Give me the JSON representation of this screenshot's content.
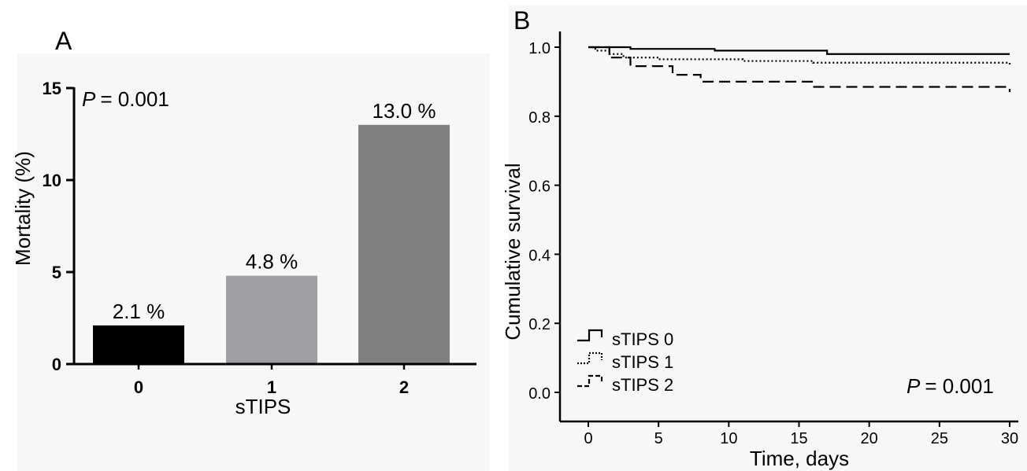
{
  "chart_data": [
    {
      "panel_label": "A",
      "type": "bar",
      "categories": [
        "0",
        "1",
        "2"
      ],
      "values": [
        2.1,
        4.8,
        13.0
      ],
      "value_labels": [
        "2.1 %",
        "4.8 %",
        "13.0 %"
      ],
      "bar_colors": [
        "#000000",
        "#a0a0a4",
        "#808080"
      ],
      "xlabel": "sTIPS",
      "ylabel": "Mortality (%)",
      "ylim": [
        0,
        15
      ],
      "yticks": [
        0,
        5,
        10,
        15
      ],
      "annotation": {
        "p_symbol": "P",
        "p_value": "= 0.001"
      }
    },
    {
      "panel_label": "B",
      "type": "line",
      "xlabel": "Time, days",
      "ylabel": "Cumulative survival",
      "xlim": [
        0,
        30
      ],
      "ylim": [
        0,
        1.0
      ],
      "xticks": [
        0,
        5,
        10,
        15,
        20,
        25,
        30
      ],
      "yticks": [
        "0.0",
        "0.2",
        "0.4",
        "0.6",
        "0.8",
        "1.0"
      ],
      "legend_position": "bottom-left",
      "annotation": {
        "p_symbol": "P",
        "p_value": "= 0.001"
      },
      "series": [
        {
          "name": "sTIPS 0",
          "style": "solid",
          "x": [
            0,
            3,
            9,
            17,
            30
          ],
          "y": [
            1.0,
            0.995,
            0.99,
            0.98,
            0.98
          ]
        },
        {
          "name": "sTIPS 1",
          "style": "dotted",
          "x": [
            0,
            0.5,
            1.5,
            2.5,
            5,
            11,
            16,
            30
          ],
          "y": [
            1.0,
            0.99,
            0.98,
            0.97,
            0.965,
            0.96,
            0.955,
            0.95
          ]
        },
        {
          "name": "sTIPS 2",
          "style": "dashed",
          "x": [
            0,
            1.5,
            3,
            6,
            8,
            16,
            30
          ],
          "y": [
            1.0,
            0.97,
            0.945,
            0.92,
            0.9,
            0.885,
            0.87
          ]
        }
      ]
    }
  ]
}
